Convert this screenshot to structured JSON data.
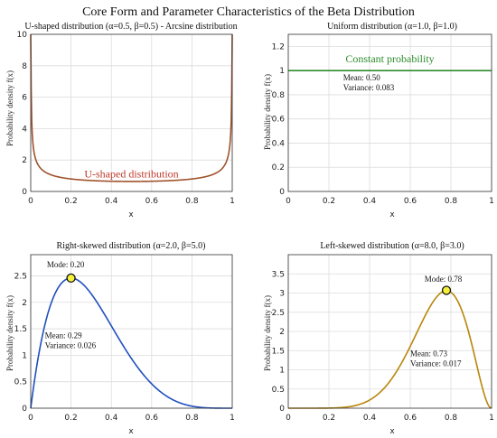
{
  "figure": {
    "title": "Core Form and Parameter Characteristics of the Beta Distribution"
  },
  "chart_data": [
    {
      "type": "line",
      "title": "U-shaped distribution (α=0.5, β=0.5) - Arcsine distribution",
      "xlabel": "x",
      "ylabel": "Probability density f(x)",
      "xlim": [
        0,
        1
      ],
      "ylim": [
        0,
        10
      ],
      "xticks": [
        0,
        0.2,
        0.4,
        0.6,
        0.8,
        1
      ],
      "xtick_labels": [
        "0",
        "0.2",
        "0.4",
        "0.6",
        "0.8",
        "1"
      ],
      "yticks": [
        0,
        2,
        4,
        6,
        8,
        10
      ],
      "ytick_labels": [
        "0",
        "2",
        "4",
        "6",
        "8",
        "10"
      ],
      "grid": true,
      "series": [
        {
          "alpha": 0.5,
          "beta": 0.5,
          "color": "#a0522d"
        }
      ],
      "annotations": [
        {
          "text": "U-shaped distribution",
          "x": 0.5,
          "y": 0.9,
          "color": "#c0392b"
        }
      ]
    },
    {
      "type": "line",
      "title": "Uniform distribution (α=1.0, β=1.0)",
      "xlabel": "x",
      "ylabel": "Probability density f(x)",
      "xlim": [
        0,
        1
      ],
      "ylim": [
        0,
        1.3
      ],
      "xticks": [
        0,
        0.2,
        0.4,
        0.6,
        0.8,
        1
      ],
      "xtick_labels": [
        "0",
        "0.2",
        "0.4",
        "0.6",
        "0.8",
        "1"
      ],
      "yticks": [
        0,
        0.2,
        0.4,
        0.6,
        0.8,
        1,
        1.2
      ],
      "ytick_labels": [
        "0",
        "0.2",
        "0.4",
        "0.6",
        "0.8",
        "1",
        "1.2"
      ],
      "grid": true,
      "series": [
        {
          "alpha": 1.0,
          "beta": 1.0,
          "color": "#2e8b2e"
        }
      ],
      "annotations": [
        {
          "text": "Constant probability",
          "x": 0.5,
          "y": 1.07,
          "color": "#2e8b2e"
        }
      ],
      "stats": {
        "mean": "Mean: 0.50",
        "variance": "Variance: 0.083",
        "x": 0.27,
        "y": 0.92
      }
    },
    {
      "type": "line",
      "title": "Right-skewed distribution (α=2.0, β=5.0)",
      "xlabel": "x",
      "ylabel": "Probability density f(x)",
      "xlim": [
        0,
        1
      ],
      "ylim": [
        0,
        2.9
      ],
      "xticks": [
        0,
        0.2,
        0.4,
        0.6,
        0.8,
        1
      ],
      "xtick_labels": [
        "0",
        "0.2",
        "0.4",
        "0.6",
        "0.8",
        "1"
      ],
      "yticks": [
        0,
        0.5,
        1,
        1.5,
        2,
        2.5
      ],
      "ytick_labels": [
        "0",
        "0.5",
        "1",
        "1.5",
        "2",
        "2.5"
      ],
      "grid": true,
      "series": [
        {
          "alpha": 2.0,
          "beta": 5.0,
          "color": "#1f4fbf"
        }
      ],
      "mode": {
        "label": "Mode: 0.20",
        "x": 0.2,
        "y": 2.458,
        "label_x": 0.08,
        "label_y": 2.66
      },
      "stats": {
        "mean": "Mean: 0.29",
        "variance": "Variance: 0.026",
        "x": 0.07,
        "y": 1.32
      }
    },
    {
      "type": "line",
      "title": "Left-skewed distribution (α=8.0, β=3.0)",
      "xlabel": "x",
      "ylabel": "Probability density f(x)",
      "xlim": [
        0,
        1
      ],
      "ylim": [
        0,
        4
      ],
      "xticks": [
        0,
        0.2,
        0.4,
        0.6,
        0.8,
        1
      ],
      "xtick_labels": [
        "0",
        "0.2",
        "0.4",
        "0.6",
        "0.8",
        "1"
      ],
      "yticks": [
        0,
        0.5,
        1,
        1.5,
        2,
        2.5,
        3,
        3.5
      ],
      "ytick_labels": [
        "0",
        "0.5",
        "1",
        "1.5",
        "2",
        "2.5",
        "3",
        "3.5"
      ],
      "grid": true,
      "series": [
        {
          "alpha": 8.0,
          "beta": 3.0,
          "color": "#b8860b"
        }
      ],
      "mode": {
        "label": "Mode: 0.78",
        "x": 0.778,
        "y": 3.07,
        "label_x": 0.67,
        "label_y": 3.3
      },
      "stats": {
        "mean": "Mean: 0.73",
        "variance": "Variance: 0.017",
        "x": 0.6,
        "y": 1.35
      }
    }
  ]
}
